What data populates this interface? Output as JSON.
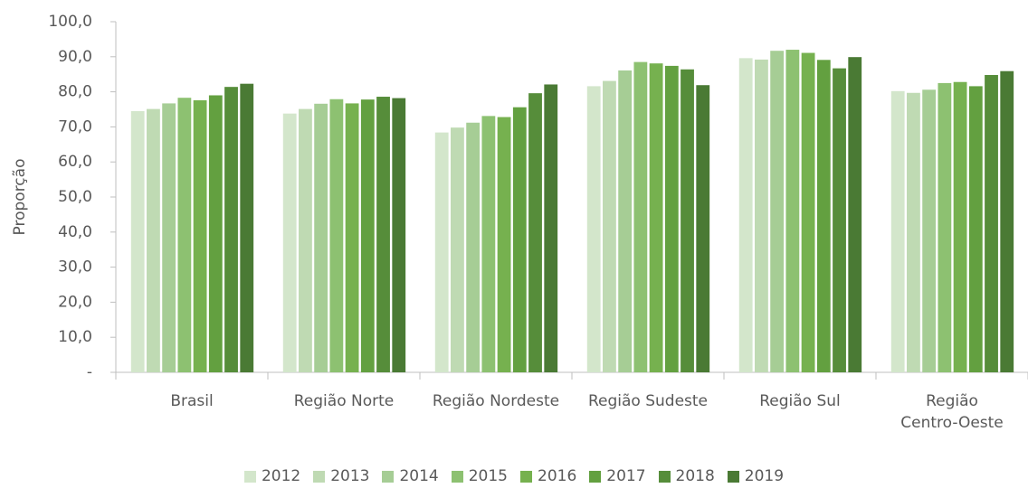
{
  "chart_data": {
    "type": "bar",
    "y_label": "Proporção",
    "categories": [
      "Brasil",
      "Região Norte",
      "Região Nordeste",
      "Região Sudeste",
      "Região Sul",
      "Região\nCentro-Oeste"
    ],
    "series": [
      {
        "name": "2012",
        "color": "#d3e6cb",
        "values": [
          74.5,
          73.8,
          68.4,
          81.6,
          89.6,
          80.2
        ]
      },
      {
        "name": "2013",
        "color": "#bfdab3",
        "values": [
          75.1,
          75.1,
          69.8,
          83.1,
          89.2,
          79.7
        ]
      },
      {
        "name": "2014",
        "color": "#a6cd95",
        "values": [
          76.7,
          76.6,
          71.2,
          86.1,
          91.7,
          80.6
        ]
      },
      {
        "name": "2015",
        "color": "#8dc171",
        "values": [
          78.3,
          77.9,
          73.1,
          88.5,
          92.0,
          82.5
        ]
      },
      {
        "name": "2016",
        "color": "#76b14f",
        "values": [
          77.6,
          76.7,
          72.8,
          88.1,
          91.1,
          82.8
        ]
      },
      {
        "name": "2017",
        "color": "#63a040",
        "values": [
          79.0,
          77.8,
          75.6,
          87.4,
          89.1,
          81.6
        ]
      },
      {
        "name": "2018",
        "color": "#568d3a",
        "values": [
          81.4,
          78.6,
          79.6,
          86.4,
          86.7,
          84.8
        ]
      },
      {
        "name": "2019",
        "color": "#4a7a34",
        "values": [
          82.3,
          78.2,
          82.1,
          81.9,
          89.9,
          85.9
        ]
      }
    ],
    "ylim": [
      0,
      100
    ],
    "yticks": [
      {
        "value": 0,
        "label": "-"
      },
      {
        "value": 10,
        "label": "10,0"
      },
      {
        "value": 20,
        "label": "20,0"
      },
      {
        "value": 30,
        "label": "30,0"
      },
      {
        "value": 40,
        "label": "40,0"
      },
      {
        "value": 50,
        "label": "50,0"
      },
      {
        "value": 60,
        "label": "60,0"
      },
      {
        "value": 70,
        "label": "70,0"
      },
      {
        "value": 80,
        "label": "80,0"
      },
      {
        "value": 90,
        "label": "90,0"
      },
      {
        "value": 100,
        "label": "100,0"
      }
    ],
    "grid": false
  }
}
